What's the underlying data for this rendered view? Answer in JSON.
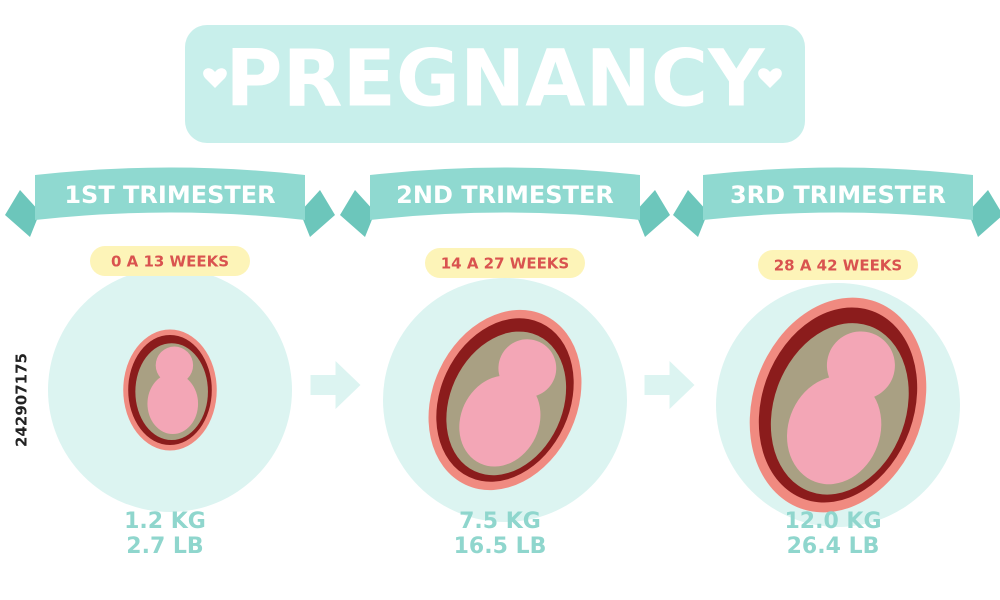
{
  "title": "PREGNANCY",
  "stages": [
    {
      "label": "1ST TRIMESTER",
      "weeks": "0 A 13 WEEKS",
      "weight_kg": "1.2 KG",
      "weight_lb": "2.7 LB"
    },
    {
      "label": "2ND TRIMESTER",
      "weeks": "14 A 27 WEEKS",
      "weight_kg": "7.5 KG",
      "weight_lb": "16.5 LB"
    },
    {
      "label": "3RD TRIMESTER",
      "weeks": "28 A 42 WEEKS",
      "weight_kg": "12.0 KG",
      "weight_lb": "26.4 LB"
    }
  ],
  "stock_id": "242907175"
}
